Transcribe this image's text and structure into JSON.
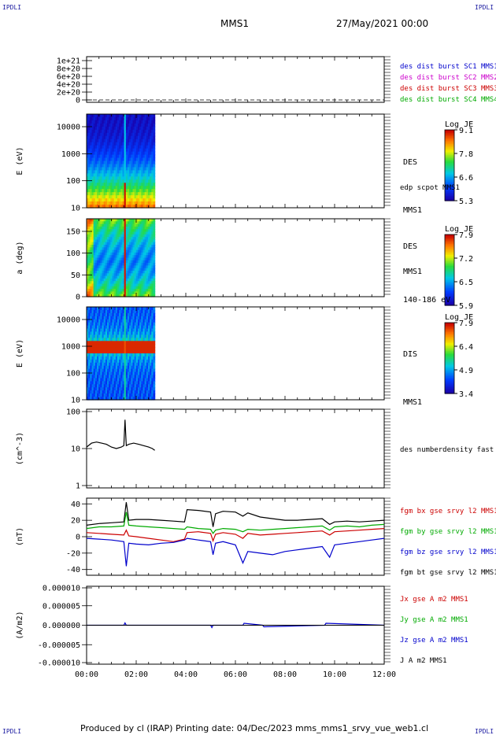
{
  "header": {
    "spacecraft": "MMS1",
    "date": "27/May/2021 00:00",
    "corner_label": "IPDLI"
  },
  "footer": {
    "text": "Produced by cl (IRAP)   Printing date: 04/Dec/2023   mms_mms1_srvy_vue_web1.cl"
  },
  "chart_data": [
    {
      "type": "line",
      "panel": "burst",
      "ylabel": "",
      "yticks": [
        "1e+21",
        "8e+20",
        "6e+20",
        "4e+20",
        "2e+20",
        "0"
      ],
      "legend": [
        {
          "text": "des dist burst SC1 MMS1",
          "color": "#0000cc"
        },
        {
          "text": "des dist burst SC2 MMS2",
          "color": "#cc00cc"
        },
        {
          "text": "des dist burst SC3 MMS3",
          "color": "#cc0000"
        },
        {
          "text": "des dist burst SC4 MMS4",
          "color": "#00aa00"
        }
      ]
    },
    {
      "type": "heatmap",
      "panel": "des-energy",
      "ylabel": "E (eV)",
      "yticks": [
        "10000",
        "1000",
        "100",
        "10"
      ],
      "colorbar": {
        "title": "Log JE",
        "ticks": [
          "9.1",
          "7.8",
          "6.6",
          "5.3"
        ]
      },
      "right_labels": [
        "DES",
        "edp scpot MMS1",
        "MMS1"
      ],
      "data_extent_hours": [
        0.0,
        2.75
      ],
      "feature": "hot band near 100-40 eV at 01:25-01:35"
    },
    {
      "type": "heatmap",
      "panel": "des-pitch",
      "ylabel": "a (deg)",
      "yticks": [
        "150",
        "100",
        "50",
        "0"
      ],
      "colorbar": {
        "title": "Log JE",
        "ticks": [
          "7.9",
          "7.2",
          "6.5",
          "5.9"
        ]
      },
      "right_labels": [
        "DES",
        "MMS1",
        "140-186 eV"
      ],
      "data_extent_hours": [
        0.0,
        2.75
      ]
    },
    {
      "type": "heatmap",
      "panel": "dis-energy",
      "ylabel": "E (eV)",
      "yticks": [
        "10000",
        "1000",
        "100",
        "10"
      ],
      "colorbar": {
        "title": "Log JE",
        "ticks": [
          "7.9",
          "6.4",
          "4.9",
          "3.4"
        ]
      },
      "right_labels": [
        "DIS",
        "MMS1"
      ],
      "data_extent_hours": [
        0.0,
        2.75
      ],
      "feature": "red band near 1000 eV"
    },
    {
      "type": "line",
      "panel": "density",
      "ylabel": "(cm^-3)",
      "yticks": [
        "100",
        "10",
        "1"
      ],
      "right_labels": [
        "des numberdensity fast M"
      ],
      "series": [
        {
          "name": "des numberdensity fast M",
          "color": "#000000",
          "x": [
            0.0,
            0.2,
            0.4,
            0.6,
            0.8,
            1.0,
            1.2,
            1.4,
            1.5,
            1.55,
            1.6,
            1.7,
            1.9,
            2.1,
            2.3,
            2.5,
            2.65,
            2.75
          ],
          "y": [
            11,
            14,
            15,
            14,
            13,
            11,
            10,
            11,
            12,
            60,
            12,
            13,
            14,
            13,
            12,
            11,
            10,
            9
          ]
        }
      ]
    },
    {
      "type": "line",
      "panel": "b-field",
      "ylabel": "(nT)",
      "yticks": [
        "40",
        "20",
        "0",
        "-20",
        "-40"
      ],
      "ylim": [
        -47,
        47
      ],
      "legend": [
        {
          "text": "fgm bx gse srvy l2 MMS1",
          "color": "#cc0000"
        },
        {
          "text": "fgm by gse srvy l2 MMS1",
          "color": "#00aa00"
        },
        {
          "text": "fgm bz gse srvy l2 MMS1",
          "color": "#0000cc"
        },
        {
          "text": "fgm bt gse srvy l2 MMS1",
          "color": "#000000"
        }
      ],
      "series": [
        {
          "name": "fgm bt gse srvy l2 MMS1",
          "color": "#000000",
          "x": [
            0,
            0.5,
            1.0,
            1.5,
            1.6,
            1.7,
            2.0,
            2.5,
            3.0,
            3.5,
            3.95,
            4.05,
            4.5,
            5.0,
            5.1,
            5.2,
            5.5,
            6.0,
            6.3,
            6.5,
            7.0,
            7.5,
            8.0,
            8.5,
            9.0,
            9.5,
            9.8,
            10.0,
            10.5,
            11.0,
            11.5,
            12.0
          ],
          "y": [
            14,
            16,
            17,
            18,
            42,
            20,
            21,
            21,
            20,
            19,
            18,
            33,
            32,
            30,
            12,
            28,
            31,
            30,
            25,
            29,
            24,
            22,
            20,
            20,
            21,
            22,
            15,
            18,
            19,
            18,
            19,
            20
          ]
        },
        {
          "name": "fgm by gse srvy l2 MMS1",
          "color": "#00aa00",
          "x": [
            0,
            0.5,
            1.0,
            1.5,
            1.6,
            1.7,
            2.0,
            2.5,
            3.0,
            3.5,
            3.95,
            4.05,
            4.5,
            5.0,
            5.1,
            5.2,
            5.5,
            6.0,
            6.3,
            6.5,
            7.0,
            7.5,
            8.0,
            8.5,
            9.0,
            9.5,
            9.8,
            10.0,
            10.5,
            11.0,
            11.5,
            12.0
          ],
          "y": [
            10,
            12,
            12,
            13,
            30,
            14,
            13,
            12,
            11,
            10,
            9,
            12,
            10,
            9,
            4,
            8,
            10,
            9,
            6,
            9,
            8,
            9,
            10,
            11,
            12,
            13,
            8,
            12,
            13,
            12,
            14,
            15
          ]
        },
        {
          "name": "fgm bx gse srvy l2 MMS1",
          "color": "#cc0000",
          "x": [
            0,
            0.5,
            1.0,
            1.5,
            1.6,
            1.7,
            2.0,
            2.5,
            3.0,
            3.5,
            3.95,
            4.05,
            4.5,
            5.0,
            5.1,
            5.2,
            5.5,
            6.0,
            6.3,
            6.5,
            7.0,
            7.5,
            8.0,
            8.5,
            9.0,
            9.5,
            9.8,
            10.0,
            10.5,
            11.0,
            11.5,
            12.0
          ],
          "y": [
            5,
            4,
            3,
            2,
            8,
            1,
            0,
            -2,
            -4,
            -6,
            -3,
            5,
            6,
            4,
            -5,
            3,
            5,
            3,
            -2,
            4,
            2,
            3,
            4,
            5,
            6,
            7,
            2,
            6,
            7,
            8,
            9,
            10
          ]
        },
        {
          "name": "fgm bz gse srvy l2 MMS1",
          "color": "#0000cc",
          "x": [
            0,
            0.5,
            1.0,
            1.5,
            1.6,
            1.7,
            2.0,
            2.5,
            3.0,
            3.5,
            3.95,
            4.05,
            4.5,
            5.0,
            5.1,
            5.2,
            5.5,
            6.0,
            6.3,
            6.5,
            7.0,
            7.5,
            8.0,
            8.5,
            9.0,
            9.5,
            9.8,
            10.0,
            10.5,
            11.0,
            11.5,
            12.0
          ],
          "y": [
            -2,
            -3,
            -4,
            -6,
            -36,
            -8,
            -9,
            -10,
            -8,
            -7,
            -4,
            -2,
            -4,
            -6,
            -22,
            -8,
            -6,
            -10,
            -32,
            -18,
            -20,
            -22,
            -18,
            -16,
            -14,
            -12,
            -25,
            -10,
            -8,
            -6,
            -4,
            -2
          ]
        }
      ]
    },
    {
      "type": "line",
      "panel": "current",
      "ylabel": "(A/m2)",
      "yticks": [
        "0.000010",
        "0.000005",
        "0.000000",
        "-0.000005",
        "-0.000010"
      ],
      "ylim": [
        -1e-05,
        1e-05
      ],
      "legend": [
        {
          "text": "Jx gse A m2 MMS1",
          "color": "#cc0000"
        },
        {
          "text": "Jy gse A m2 MMS1",
          "color": "#00aa00"
        },
        {
          "text": "Jz gse A m2 MMS1",
          "color": "#0000cc"
        },
        {
          "text": "J A m2 MMS1",
          "color": "#000000"
        }
      ],
      "series": [
        {
          "name": "Jz gse A m2 MMS1",
          "color": "#0000cc",
          "x": [
            0,
            1.5,
            1.55,
            1.6,
            2.0,
            5.0,
            5.05,
            5.1,
            6.3,
            6.35,
            7.1,
            7.15,
            9.6,
            9.65,
            12.0
          ],
          "y": [
            0,
            0,
            6e-07,
            0,
            0,
            0,
            -6e-07,
            0,
            0,
            5e-07,
            0,
            -4e-07,
            0,
            5e-07,
            0
          ]
        }
      ]
    }
  ],
  "x_axis": {
    "range_hours": [
      0,
      12
    ],
    "ticks": [
      "00:00",
      "02:00",
      "04:00",
      "06:00",
      "08:00",
      "10:00",
      "12:00"
    ]
  }
}
